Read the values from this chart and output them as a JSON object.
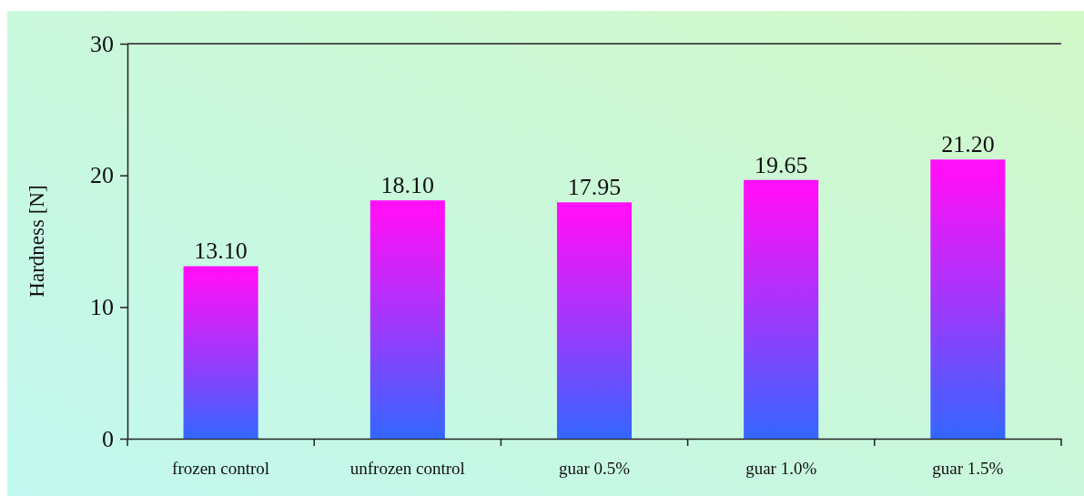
{
  "chart_data": {
    "type": "bar",
    "ylabel": "Hardness [N]",
    "categories": [
      "frozen control",
      "unfrozen control",
      "guar 0.5%",
      "guar 1.0%",
      "guar 1.5%"
    ],
    "values": [
      13.1,
      18.1,
      17.95,
      19.65,
      21.2
    ],
    "color": "#ff10f8",
    "value_labels": [
      "13.10",
      "18.10",
      "17.95",
      "19.65",
      "21.20"
    ],
    "ylim": [
      0,
      30
    ],
    "yticks": [
      0,
      10,
      20,
      30
    ]
  }
}
